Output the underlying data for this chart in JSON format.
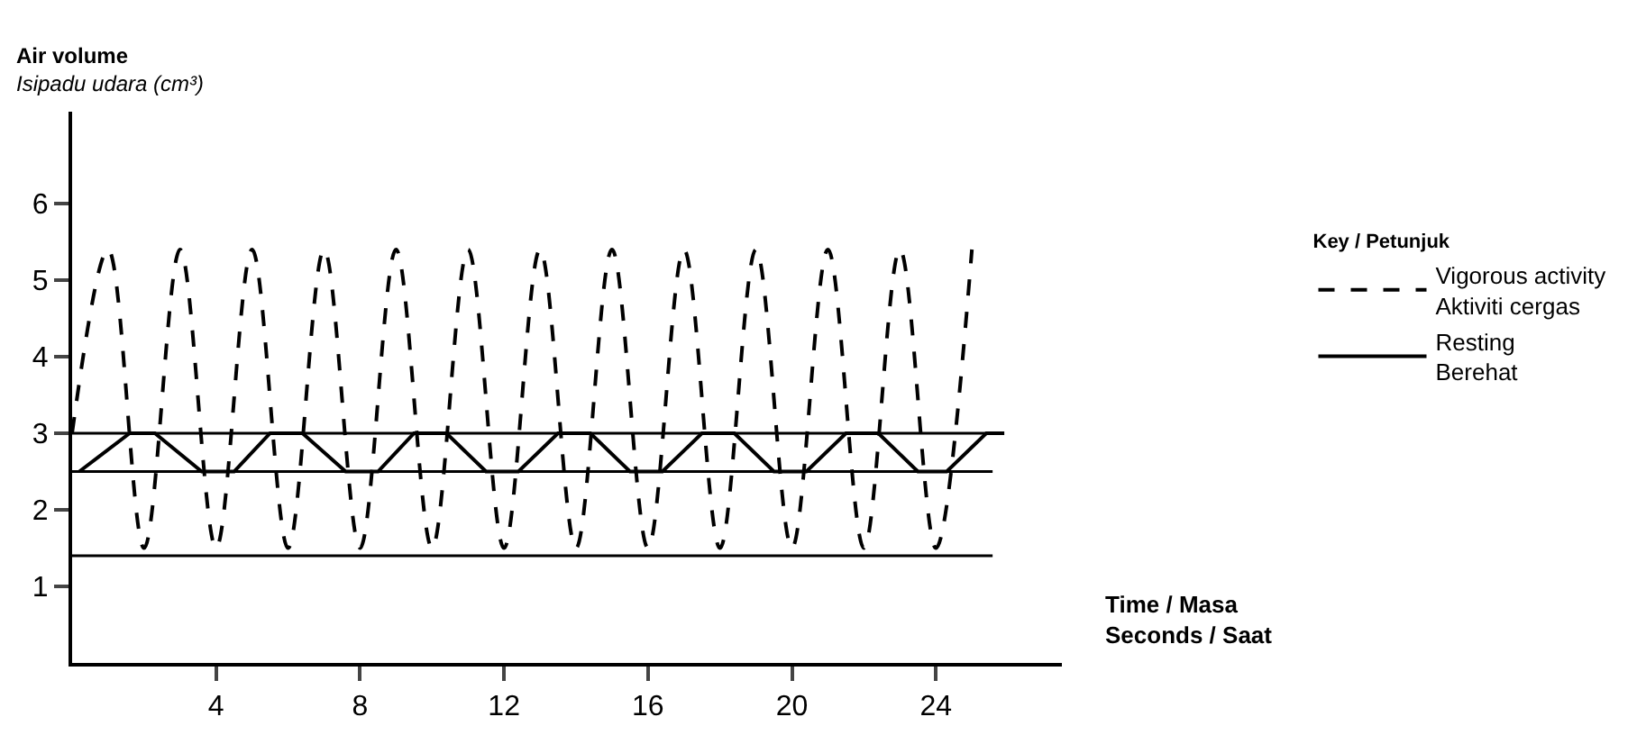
{
  "chart_data": {
    "type": "line",
    "xlabel": "Time / Masa\nSeconds / Saat",
    "ylabel": "Air volume\nIsipadu udara (cm³)",
    "legend_title": "Key / Petunjuk",
    "xlim": [
      0,
      27.5
    ],
    "ylim": [
      0,
      7.2
    ],
    "xticks": [
      4,
      8,
      12,
      16,
      20,
      24
    ],
    "yticks": [
      1,
      2,
      3,
      4,
      5,
      6
    ],
    "legend": "right",
    "marker": "none",
    "series": [
      {
        "name": "Vigorous activity\nAktiviti cergas",
        "color": "#000000",
        "line_style": "dashed",
        "x": [
          0,
          1,
          2,
          3,
          4,
          5,
          6,
          7,
          8,
          9,
          10,
          11,
          12,
          13,
          14,
          15,
          16,
          17,
          18,
          19,
          20,
          21,
          22,
          23,
          24,
          25
        ],
        "values": [
          3.0,
          5.4,
          1.5,
          5.4,
          1.5,
          5.4,
          1.5,
          5.4,
          1.5,
          5.4,
          1.5,
          5.4,
          1.5,
          5.4,
          1.5,
          5.4,
          1.5,
          5.4,
          1.5,
          5.4,
          1.5,
          5.4,
          1.5,
          5.4,
          1.5,
          5.4
        ]
      },
      {
        "name": "Resting\nBerehat",
        "color": "#000000",
        "line_style": "solid",
        "x": [
          0.2,
          1.6,
          2.3,
          3.6,
          4.5,
          5.5,
          6.4,
          7.6,
          8.5,
          9.5,
          10.4,
          11.5,
          12.4,
          13.5,
          14.4,
          15.5,
          16.4,
          17.5,
          18.4,
          19.5,
          20.4,
          21.5,
          22.4,
          23.5,
          24.3,
          25.4,
          25.9
        ],
        "values": [
          2.5,
          3.0,
          3.0,
          2.5,
          2.5,
          3.0,
          3.0,
          2.5,
          2.5,
          3.0,
          3.0,
          2.5,
          2.5,
          3.0,
          3.0,
          2.5,
          2.5,
          3.0,
          3.0,
          2.5,
          2.5,
          3.0,
          3.0,
          2.5,
          2.5,
          3.0,
          3.0
        ]
      }
    ],
    "ref_lines": [
      {
        "axis": "y",
        "value": 3.0,
        "color": "#000000",
        "line_style": "solid"
      },
      {
        "axis": "y",
        "value": 2.5,
        "color": "#000000",
        "line_style": "solid"
      },
      {
        "axis": "y",
        "value": 1.4,
        "color": "#000000",
        "line_style": "solid"
      }
    ]
  }
}
